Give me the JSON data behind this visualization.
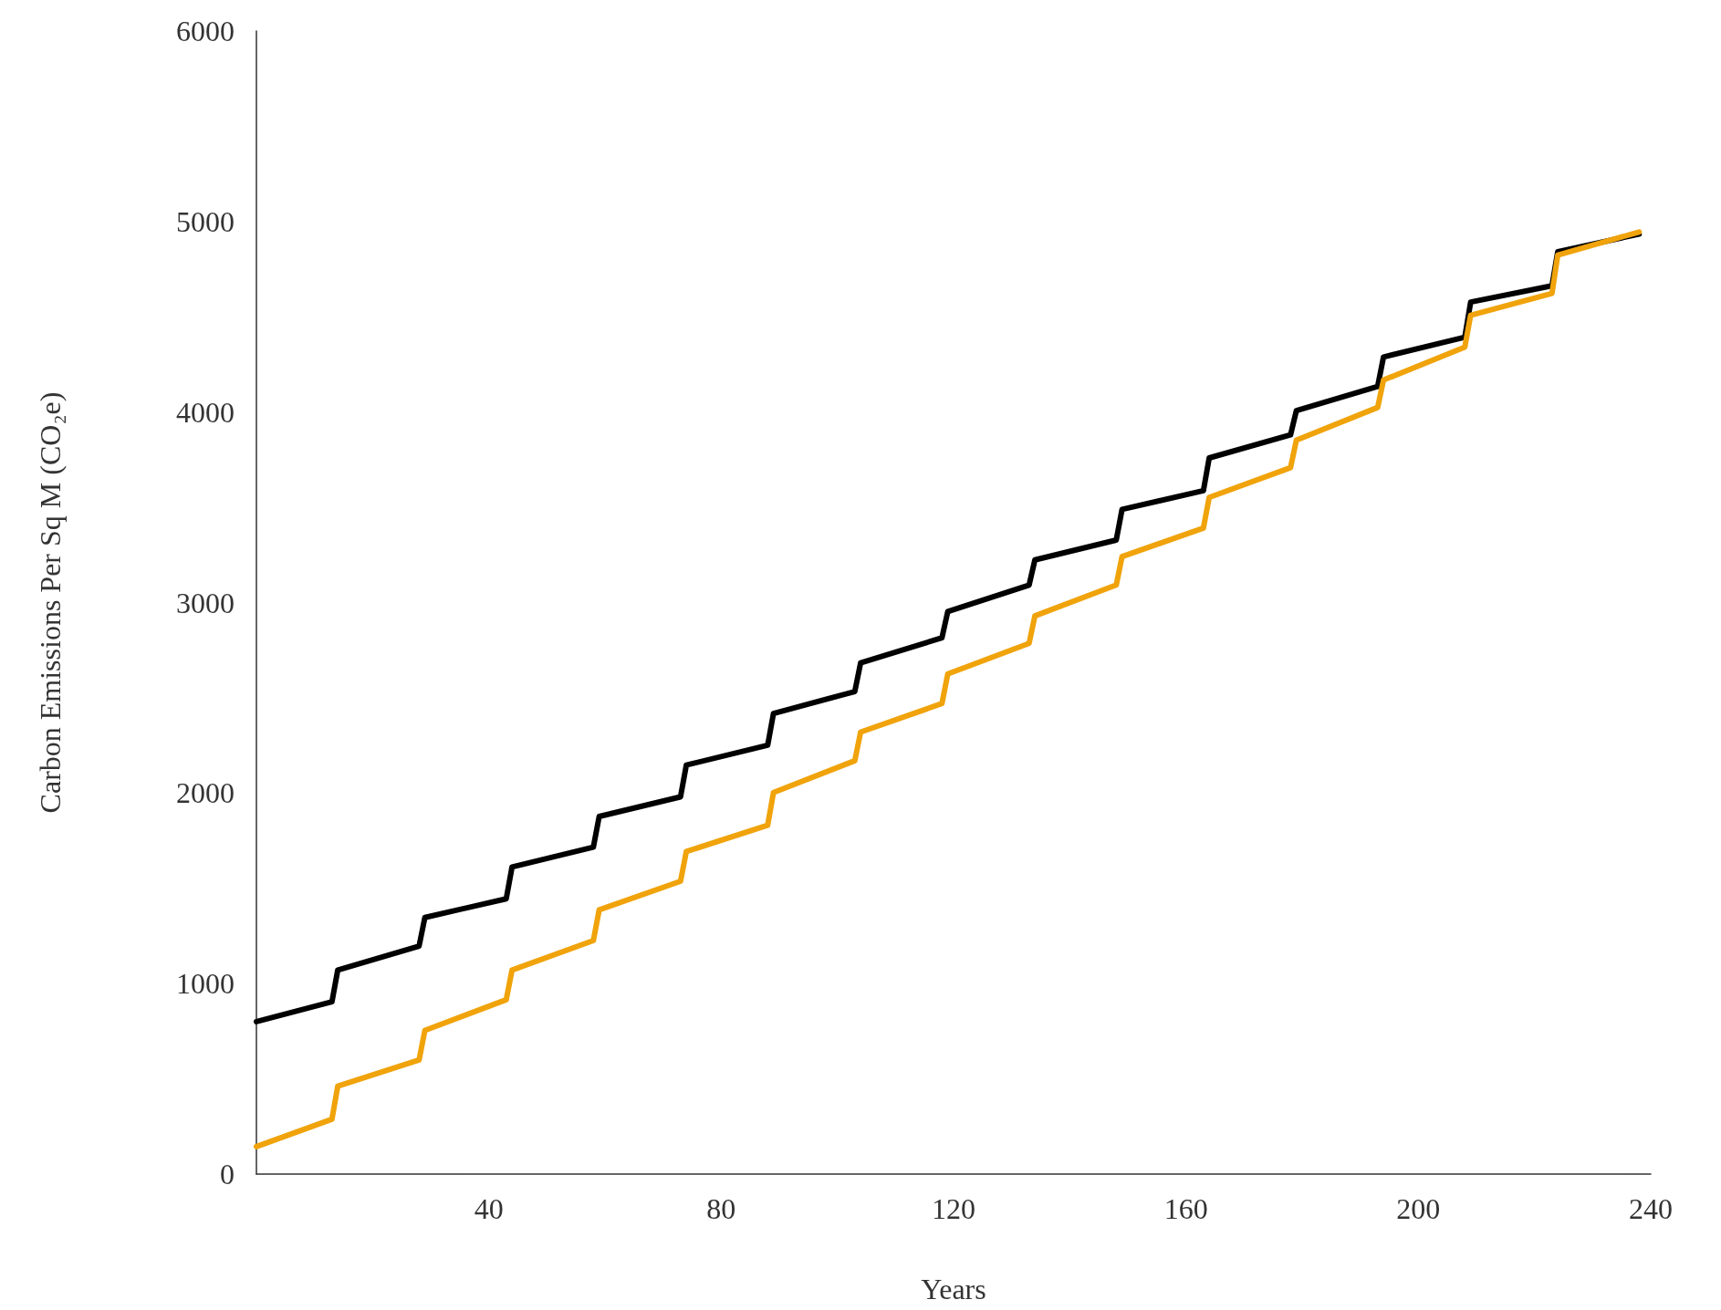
{
  "chart_data": {
    "type": "line",
    "xlabel": "Years",
    "ylabel": "Carbon Emissions Per Sq M (CO₂e)",
    "xlim": [
      0,
      240
    ],
    "xticks": [
      40,
      80,
      120,
      160,
      200,
      240
    ],
    "ylim": [
      0,
      6000
    ],
    "yticks": [
      0,
      1000,
      2000,
      3000,
      4000,
      5000,
      6000
    ],
    "grid": false,
    "marker": "none",
    "line_style": "solid",
    "x": [
      0,
      13,
      14,
      28,
      29,
      43,
      44,
      58,
      59,
      73,
      74,
      88,
      89,
      103,
      104,
      118,
      119,
      133,
      134,
      148,
      149,
      163,
      164,
      178,
      179,
      193,
      194,
      208,
      209,
      223,
      224,
      238
    ],
    "series": [
      {
        "color": "#000000",
        "values": [
          800,
          904,
          1071,
          1197,
          1347,
          1445,
          1612,
          1716,
          1877,
          1980,
          2147,
          2251,
          2418,
          2533,
          2683,
          2815,
          2953,
          3092,
          3224,
          3328,
          3489,
          3587,
          3759,
          3880,
          4007,
          4134,
          4289,
          4393,
          4577,
          4663,
          4842,
          4934
        ]
      },
      {
        "color": "#f0a30a",
        "values": [
          144,
          288,
          461,
          599,
          754,
          915,
          1071,
          1226,
          1387,
          1537,
          1693,
          1831,
          2003,
          2170,
          2320,
          2470,
          2625,
          2786,
          2930,
          3092,
          3241,
          3391,
          3552,
          3708,
          3852,
          4024,
          4168,
          4341,
          4508,
          4623,
          4824,
          4945
        ]
      }
    ]
  }
}
